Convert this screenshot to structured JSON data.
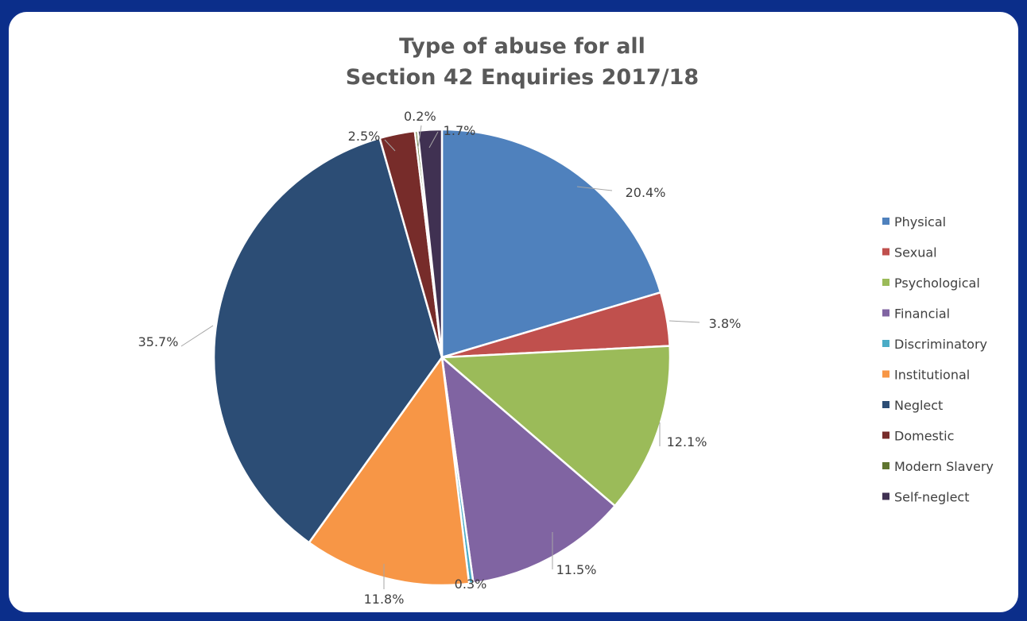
{
  "chart_data": {
    "type": "pie",
    "title": [
      "Type of abuse for all",
      "Section 42 Enquiries 2017/18"
    ],
    "categories": [
      "Physical",
      "Sexual",
      "Psychological",
      "Financial",
      "Discriminatory",
      "Institutional",
      "Neglect",
      "Domestic",
      "Modern Slavery",
      "Self-neglect"
    ],
    "values": [
      20.4,
      3.8,
      12.1,
      11.5,
      0.3,
      11.8,
      35.7,
      2.5,
      0.2,
      1.7
    ],
    "data_labels": [
      "20.4%",
      "3.8%",
      "12.1%",
      "11.5%",
      "0.3%",
      "11.8%",
      "35.7%",
      "2.5%",
      "",
      "1.7%"
    ],
    "extra_labels": [
      "0.2%"
    ],
    "colors": [
      "#4f81bd",
      "#c0504d",
      "#9bbb59",
      "#8064a2",
      "#4bacc6",
      "#f79646",
      "#2c4d75",
      "#772c2a",
      "#5f7530",
      "#403152"
    ],
    "legend": "right"
  }
}
